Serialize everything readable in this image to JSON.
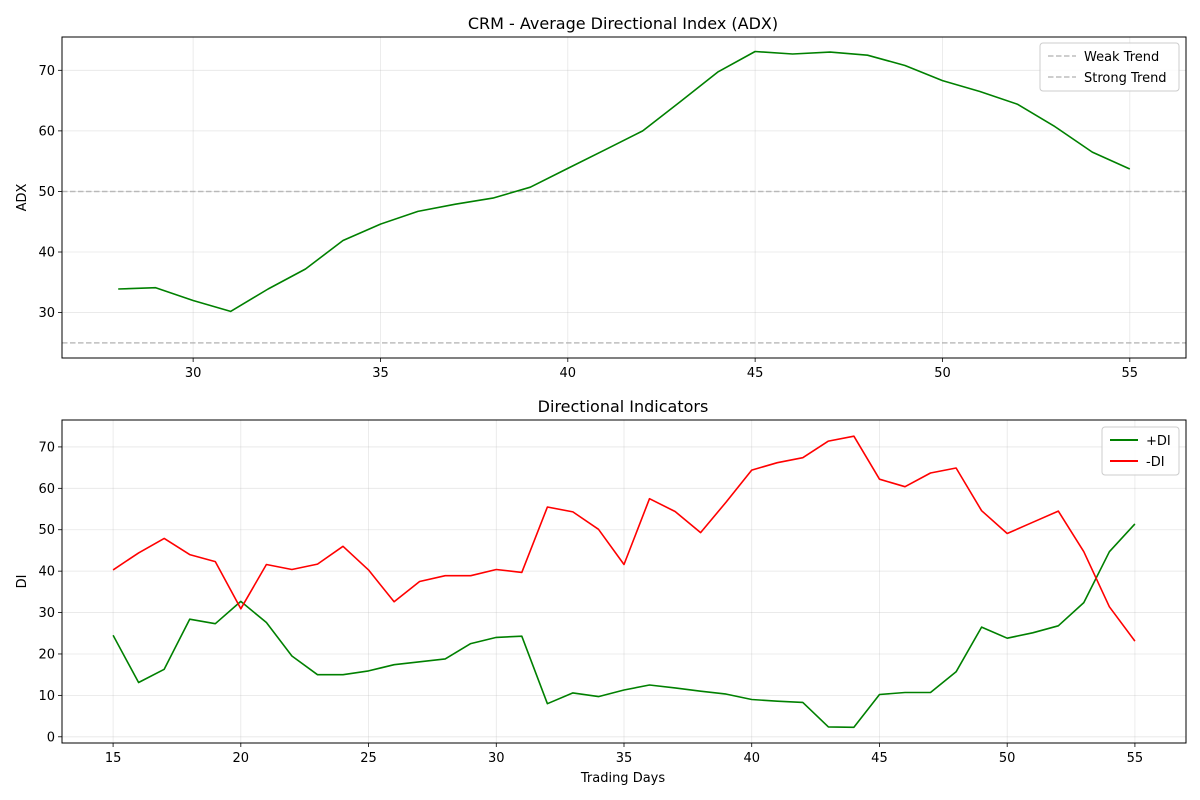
{
  "chart_data": [
    {
      "type": "line",
      "title": "CRM - Average Directional Index (ADX)",
      "xlabel": "",
      "ylabel": "ADX",
      "xlim": [
        26.5,
        56.5
      ],
      "ylim": [
        22.5,
        75.5
      ],
      "xticks": [
        30,
        35,
        40,
        45,
        50,
        55
      ],
      "yticks": [
        30,
        40,
        50,
        60,
        70
      ],
      "grid": true,
      "legend_position": "upper right",
      "x": [
        28,
        29,
        30,
        31,
        32,
        33,
        34,
        35,
        36,
        37,
        38,
        39,
        40,
        41,
        42,
        43,
        44,
        45,
        46,
        47,
        48,
        49,
        50,
        51,
        52,
        53,
        54,
        55
      ],
      "series": [
        {
          "name": "",
          "color": "#008000",
          "values": [
            33.9,
            34.1,
            32.0,
            30.2,
            33.9,
            37.2,
            41.9,
            44.6,
            46.7,
            47.9,
            48.9,
            50.7,
            53.8,
            56.9,
            60.0,
            64.8,
            69.7,
            73.1,
            72.7,
            73.0,
            72.5,
            70.8,
            68.3,
            66.5,
            64.4,
            60.7,
            56.5,
            53.7
          ]
        }
      ],
      "reference_lines": [
        {
          "name": "Weak Trend",
          "value": 50,
          "color": "#a9a9a9",
          "style": "dashed"
        },
        {
          "name": "Strong Trend",
          "value": 25,
          "color": "#a9a9a9",
          "style": "dashed"
        }
      ],
      "legend": [
        "Weak Trend",
        "Strong Trend"
      ]
    },
    {
      "type": "line",
      "title": "Directional Indicators",
      "xlabel": "Trading Days",
      "ylabel": "DI",
      "xlim": [
        13,
        57
      ],
      "ylim": [
        -1.5,
        76.5
      ],
      "xticks": [
        15,
        20,
        25,
        30,
        35,
        40,
        45,
        50,
        55
      ],
      "yticks": [
        0,
        10,
        20,
        30,
        40,
        50,
        60,
        70
      ],
      "grid": true,
      "legend_position": "upper right",
      "x": [
        15,
        16,
        17,
        18,
        19,
        20,
        21,
        22,
        23,
        24,
        25,
        26,
        27,
        28,
        29,
        30,
        31,
        32,
        33,
        34,
        35,
        36,
        37,
        38,
        39,
        40,
        41,
        42,
        43,
        44,
        45,
        46,
        47,
        48,
        49,
        50,
        51,
        52,
        53,
        54,
        55
      ],
      "series": [
        {
          "name": "+DI",
          "color": "#008000",
          "values": [
            24.5,
            13.1,
            16.3,
            28.4,
            27.3,
            32.7,
            27.6,
            19.5,
            15.0,
            15.0,
            15.9,
            17.4,
            18.1,
            18.8,
            22.5,
            24.0,
            24.3,
            8.0,
            10.6,
            9.7,
            11.3,
            12.5,
            11.8,
            11.0,
            10.3,
            9.0,
            8.6,
            8.3,
            2.4,
            2.3,
            10.2,
            10.7,
            10.7,
            15.7,
            26.5,
            23.8,
            25.1,
            26.8,
            32.4,
            44.7,
            51.4
          ]
        },
        {
          "name": "-DI",
          "color": "#ff0000",
          "values": [
            40.3,
            44.4,
            47.9,
            44.0,
            42.3,
            30.9,
            41.6,
            40.4,
            41.7,
            46.0,
            40.3,
            32.6,
            37.5,
            38.9,
            38.9,
            40.4,
            39.7,
            55.5,
            54.3,
            50.1,
            41.6,
            57.5,
            54.4,
            49.3,
            56.7,
            64.4,
            66.2,
            67.4,
            71.4,
            72.6,
            62.2,
            60.4,
            63.7,
            64.9,
            54.6,
            49.1,
            51.8,
            54.5,
            44.7,
            31.4,
            23.1
          ]
        }
      ],
      "legend": [
        "+DI",
        "-DI"
      ]
    }
  ]
}
